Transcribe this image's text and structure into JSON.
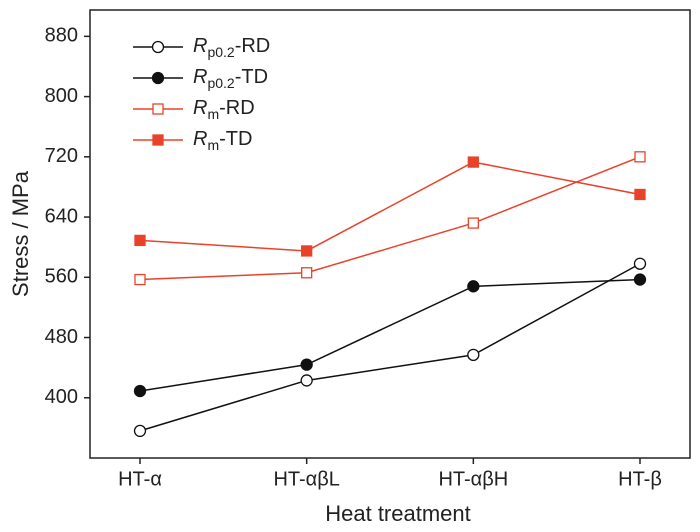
{
  "chart_data": {
    "type": "line",
    "x_label": "Heat treatment",
    "y_label": "Stress / MPa",
    "categories": [
      "HT-α",
      "HT-αβL",
      "HT-αβH",
      "HT-β"
    ],
    "ylim": [
      320,
      915
    ],
    "yticks": [
      400,
      480,
      560,
      640,
      720,
      800,
      880
    ],
    "grid": false,
    "legend": "upper left",
    "series": [
      {
        "name": "Rp0.2-RD",
        "color": "#111111",
        "marker": "circle",
        "filled": false,
        "values": [
          356,
          423,
          457,
          578
        ]
      },
      {
        "name": "Rp0.2-TD",
        "color": "#111111",
        "marker": "circle",
        "filled": true,
        "values": [
          409,
          444,
          548,
          557
        ]
      },
      {
        "name": "Rm-RD",
        "color": "#e8432a",
        "marker": "square",
        "filled": false,
        "values": [
          557,
          566,
          632,
          720
        ]
      },
      {
        "name": "Rm-TD",
        "color": "#e8432a",
        "marker": "square",
        "filled": true,
        "values": [
          609,
          595,
          713,
          670
        ]
      }
    ]
  }
}
